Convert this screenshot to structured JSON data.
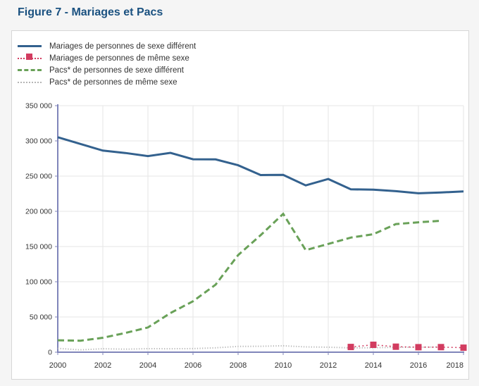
{
  "figure": {
    "title": "Figure 7 - Mariages et Pacs"
  },
  "colors": {
    "page_background": "#f5f5f5",
    "panel_background": "#ffffff",
    "panel_border": "#d6d6d6",
    "title_text": "#1a5180",
    "axis_line": "#8085ba",
    "gridline": "#e6e6e6",
    "tick_text": "#333333",
    "legend_text": "#333333",
    "series_blue": "#33618e",
    "series_pink": "#d23c60",
    "series_green": "#69a158",
    "series_gray": "#b5b5b5"
  },
  "chart_data": {
    "type": "line",
    "title": "Figure 7 - Mariages et Pacs",
    "xlabel": "",
    "ylabel": "",
    "x_range": [
      2000,
      2018
    ],
    "x_tick_labels": [
      "2000",
      "2002",
      "2004",
      "2006",
      "2008",
      "2010",
      "2012",
      "2014",
      "2016",
      "2018"
    ],
    "ylim": [
      0,
      350000
    ],
    "y_tick_step": 50000,
    "y_tick_labels": [
      "0",
      "50 000",
      "100 000",
      "150 000",
      "200 000",
      "250 000",
      "300 000",
      "350 000"
    ],
    "grid": true,
    "legend_position": "top-left",
    "series": [
      {
        "label": "Mariages de personnes de sexe différent",
        "color": "#33618e",
        "line_style": "solid",
        "marker": "none",
        "start_year": 2000,
        "end_year": 2018,
        "values": [
          305234,
          295720,
          286169,
          282756,
          278439,
          283036,
          273914,
          273669,
          265404,
          251478,
          251654,
          236826,
          245930,
          231225,
          230770,
          228565,
          225612,
          226671,
          228349
        ]
      },
      {
        "label": "Mariages de personnes de même sexe",
        "color": "#d23c60",
        "line_style": "dotted",
        "marker": "square",
        "start_year": 2013,
        "end_year": 2018,
        "values": [
          7367,
          10522,
          7751,
          7113,
          7244,
          6386
        ]
      },
      {
        "label": "Pacs* de personnes de sexe différent",
        "color": "#69a158",
        "line_style": "dashed",
        "marker": "none",
        "start_year": 2000,
        "end_year": 2017,
        "values": [
          16859,
          16306,
          20460,
          27291,
          35070,
          55608,
          72291,
          95802,
          137829,
          166141,
          196418,
          144881,
          153654,
          162705,
          167463,
          181930,
          184425,
          186584
        ]
      },
      {
        "label": "Pacs* de personnes de même sexe",
        "color": "#b5b5b5",
        "line_style": "fine-dotted",
        "marker": "none",
        "start_year": 2000,
        "end_year": 2017,
        "values": [
          5412,
          3323,
          4851,
          4294,
          5023,
          4865,
          5071,
          6221,
          8201,
          8443,
          9143,
          7499,
          7059,
          6083,
          6268,
          7017,
          7112,
          7366
        ]
      }
    ]
  }
}
